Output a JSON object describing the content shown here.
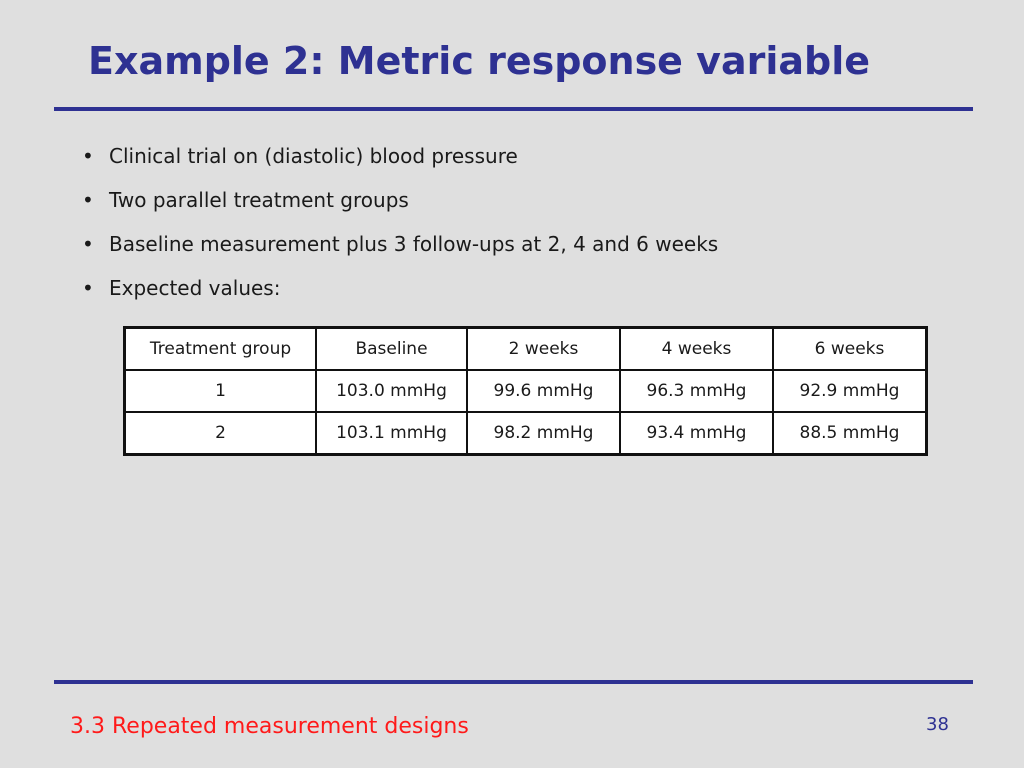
{
  "slide": {
    "title": "Example 2: Metric response variable",
    "bullet_symbol": "•",
    "bullets": [
      "Clinical trial on (diastolic) blood pressure",
      "Two parallel treatment groups",
      "Baseline measurement plus 3 follow-ups at 2, 4 and 6 weeks",
      "Expected values:"
    ]
  },
  "table": {
    "headers": [
      "Treatment group",
      "Baseline",
      "2 weeks",
      "4 weeks",
      "6 weeks"
    ],
    "rows": [
      [
        "1",
        "103.0 mmHg",
        "99.6 mmHg",
        "96.3 mmHg",
        "92.9 mmHg"
      ],
      [
        "2",
        "103.1 mmHg",
        "98.2 mmHg",
        "93.4 mmHg",
        "88.5 mmHg"
      ]
    ]
  },
  "footer": {
    "section": "3.3 Repeated measurement designs",
    "page_number": "38"
  },
  "colors": {
    "background": "#dfdfdf",
    "title": "#2e3192",
    "rule": "#2e3192",
    "footer_section": "#ff1a1a",
    "page_number": "#2e3192"
  }
}
